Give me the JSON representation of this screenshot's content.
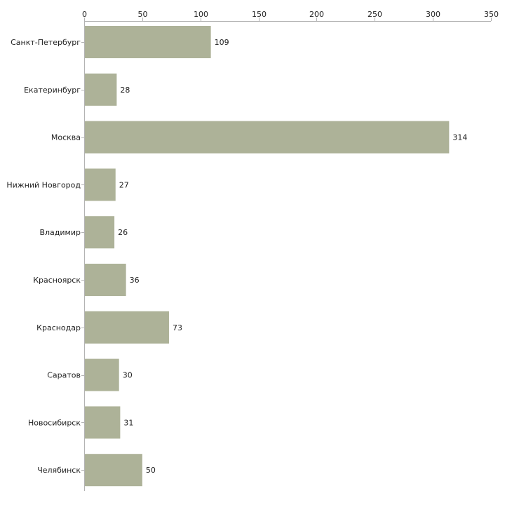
{
  "chart_data": {
    "type": "bar",
    "orientation": "horizontal",
    "title": "",
    "xlabel": "",
    "ylabel": "",
    "categories": [
      "Санкт-Петербург",
      "Екатеринбург",
      "Москва",
      "Нижний Новгород",
      "Владимир",
      "Красноярск",
      "Краснодар",
      "Саратов",
      "Новосибирск",
      "Челябинск"
    ],
    "values": [
      109,
      28,
      314,
      27,
      26,
      36,
      73,
      30,
      31,
      50
    ],
    "xlim": [
      0,
      350
    ],
    "xticks": [
      0,
      50,
      100,
      150,
      200,
      250,
      300,
      350
    ],
    "x_axis_position": "top",
    "grid": false,
    "legend": "none",
    "data_labels": true,
    "bar_color": "#adb298",
    "axis_color": "#b3b3b3",
    "text_color": "#222222"
  }
}
